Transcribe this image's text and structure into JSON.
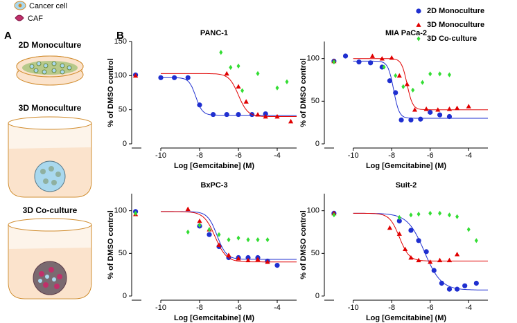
{
  "panel_labels": [
    "A",
    "B"
  ],
  "panel_a": {
    "key": [
      "Cancer cell",
      "CAF"
    ],
    "conditions": [
      "2D Monoculture",
      "3D Monoculture",
      "3D Co-culture"
    ]
  },
  "legend": [
    {
      "name": "2D Monoculture",
      "color": "#1f2fd0",
      "marker": "circle"
    },
    {
      "name": "3D Monoculture",
      "color": "#e00000",
      "marker": "triangle"
    },
    {
      "name": "3D Co-culture",
      "color": "#33dd33",
      "marker": "diamond"
    }
  ],
  "chart_data": [
    {
      "type": "scatter",
      "title": "PANC-1",
      "x_label": "Log [Gemcitabine] (M)",
      "y_label": "% of DMSO control",
      "xlim": [
        -11.5,
        -3
      ],
      "xticks": [
        -10,
        -8,
        -6,
        -4
      ],
      "ylim": [
        0,
        150
      ],
      "yticks": [
        0,
        50,
        100,
        150
      ],
      "series": [
        {
          "x": [
            -11.3,
            -10,
            -9.3,
            -8.6,
            -8,
            -7.3,
            -6.6,
            -6,
            -5.3,
            -4.6
          ],
          "values": [
            101,
            97,
            97,
            97,
            57,
            43,
            43,
            43,
            43,
            44
          ],
          "fit": {
            "top": 97,
            "bottom": 42,
            "log_ec50": -8.2,
            "hill": 2.5
          }
        },
        {
          "x": [
            -11.3,
            -6.6,
            -6,
            -5.6,
            -5,
            -4.6,
            -4,
            -3.3
          ],
          "values": [
            100,
            103,
            84,
            62,
            43,
            40,
            40,
            33
          ],
          "fit": {
            "top": 103,
            "bottom": 40,
            "log_ec50": -6,
            "hill": 1.8
          }
        },
        {
          "x": [
            -6.9,
            -6.4,
            -6,
            -5.8,
            -5,
            -4,
            -3.5
          ],
          "values": [
            134,
            112,
            114,
            78,
            103,
            82,
            91
          ]
        }
      ]
    },
    {
      "type": "scatter",
      "title": "MIA PaCa-2",
      "x_label": "Log [Gemcitabine] (M)",
      "y_label": "% of DMSO control",
      "xlim": [
        -11.5,
        -3
      ],
      "xticks": [
        -10,
        -8,
        -6,
        -4
      ],
      "ylim": [
        0,
        120
      ],
      "yticks": [
        0,
        50,
        100
      ],
      "series": [
        {
          "x": [
            -11,
            -10.4,
            -9.7,
            -9.1,
            -8.5,
            -8.1,
            -7.8,
            -7.5,
            -7,
            -6.5,
            -6,
            -5.5,
            -5
          ],
          "values": [
            97,
            103,
            96,
            95,
            90,
            74,
            60,
            28,
            28,
            29,
            37,
            34,
            32
          ],
          "fit": {
            "top": 97,
            "bottom": 30,
            "log_ec50": -7.9,
            "hill": 3
          }
        },
        {
          "x": [
            -11,
            -9,
            -8.5,
            -8,
            -7.6,
            -7.2,
            -6.8,
            -6.2,
            -5.6,
            -5,
            -4.6,
            -4
          ],
          "values": [
            97,
            103,
            100,
            101,
            80,
            70,
            40,
            41,
            40,
            41,
            42,
            44
          ],
          "fit": {
            "top": 100,
            "bottom": 40,
            "log_ec50": -7.2,
            "hill": 3
          }
        },
        {
          "x": [
            -11,
            -8.4,
            -7.8,
            -7.4,
            -6.9,
            -6.4,
            -6,
            -5.5,
            -5
          ],
          "values": [
            96,
            90,
            80,
            67,
            63,
            72,
            82,
            82,
            81
          ]
        }
      ]
    },
    {
      "type": "scatter",
      "title": "BxPC-3",
      "x_label": "Log [Gemcitabine] (M)",
      "y_label": "% of DMSO control",
      "xlim": [
        -11.5,
        -3
      ],
      "xticks": [
        -10,
        -8,
        -6,
        -4
      ],
      "ylim": [
        0,
        120
      ],
      "yticks": [
        0,
        50,
        100
      ],
      "series": [
        {
          "x": [
            -11.3,
            -8,
            -7.5,
            -7,
            -6.5,
            -6,
            -5.5,
            -5,
            -4.5,
            -4
          ],
          "values": [
            99,
            82,
            72,
            58,
            45,
            45,
            45,
            45,
            41,
            36
          ],
          "fit": {
            "top": 99,
            "bottom": 43,
            "log_ec50": -7.1,
            "hill": 1.8
          }
        },
        {
          "x": [
            -11.3,
            -8.6,
            -8,
            -7.5,
            -7,
            -6.5,
            -6,
            -5.5,
            -5,
            -4.5
          ],
          "values": [
            96,
            102,
            88,
            78,
            60,
            48,
            44,
            42,
            43,
            40
          ],
          "fit": {
            "top": 99,
            "bottom": 40,
            "log_ec50": -7.2,
            "hill": 1.5
          }
        },
        {
          "x": [
            -11.3,
            -8.6,
            -8,
            -7.5,
            -7,
            -6.5,
            -6,
            -5.5,
            -5,
            -4.5
          ],
          "values": [
            97,
            75,
            83,
            78,
            72,
            66,
            68,
            66,
            66,
            66
          ]
        }
      ]
    },
    {
      "type": "scatter",
      "title": "Suit-2",
      "x_label": "Log [Gemcitabine] (M)",
      "y_label": "% of DMSO control",
      "xlim": [
        -11.5,
        -3
      ],
      "xticks": [
        -10,
        -8,
        -6,
        -4
      ],
      "ylim": [
        0,
        120
      ],
      "yticks": [
        0,
        50,
        100
      ],
      "series": [
        {
          "x": [
            -11,
            -7.6,
            -7,
            -6.6,
            -6.2,
            -5.8,
            -5.4,
            -5,
            -4.6,
            -4.2,
            -3.6
          ],
          "values": [
            97,
            88,
            77,
            65,
            52,
            30,
            15,
            8,
            8,
            12,
            15
          ],
          "fit": {
            "top": 97,
            "bottom": 7,
            "log_ec50": -6.3,
            "hill": 1
          }
        },
        {
          "x": [
            -11,
            -8.1,
            -7.6,
            -7.3,
            -7,
            -6.6,
            -6,
            -5.5,
            -5,
            -4.6
          ],
          "values": [
            97,
            80,
            73,
            55,
            45,
            42,
            40,
            42,
            42,
            49
          ],
          "fit": {
            "top": 97,
            "bottom": 41,
            "log_ec50": -7.6,
            "hill": 1.7
          }
        },
        {
          "x": [
            -11,
            -7.6,
            -7,
            -6.6,
            -6,
            -5.5,
            -5,
            -4.6,
            -4,
            -3.6
          ],
          "values": [
            95,
            92,
            95,
            96,
            97,
            97,
            95,
            93,
            78,
            65
          ]
        }
      ]
    }
  ]
}
